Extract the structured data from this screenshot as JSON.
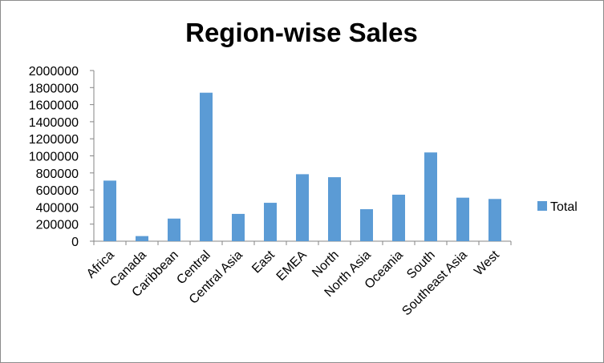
{
  "chart_data": {
    "type": "bar",
    "title": "Region-wise Sales",
    "xlabel": "",
    "ylabel": "",
    "categories": [
      "Africa",
      "Canada",
      "Caribbean",
      "Central",
      "Central Asia",
      "East",
      "EMEA",
      "North",
      "North Asia",
      "Oceania",
      "South",
      "Southeast Asia",
      "West"
    ],
    "series": [
      {
        "name": "Total",
        "color": "#5b9bd5",
        "values": [
          710000,
          60000,
          265000,
          1740000,
          320000,
          450000,
          785000,
          750000,
          375000,
          545000,
          1040000,
          510000,
          495000
        ]
      }
    ],
    "ylim": [
      0,
      2000000
    ],
    "yticks": [
      "0",
      "200000",
      "400000",
      "600000",
      "800000",
      "1000000",
      "1200000",
      "1400000",
      "1600000",
      "1800000",
      "2000000"
    ],
    "grid": false,
    "legend_position": "right"
  }
}
